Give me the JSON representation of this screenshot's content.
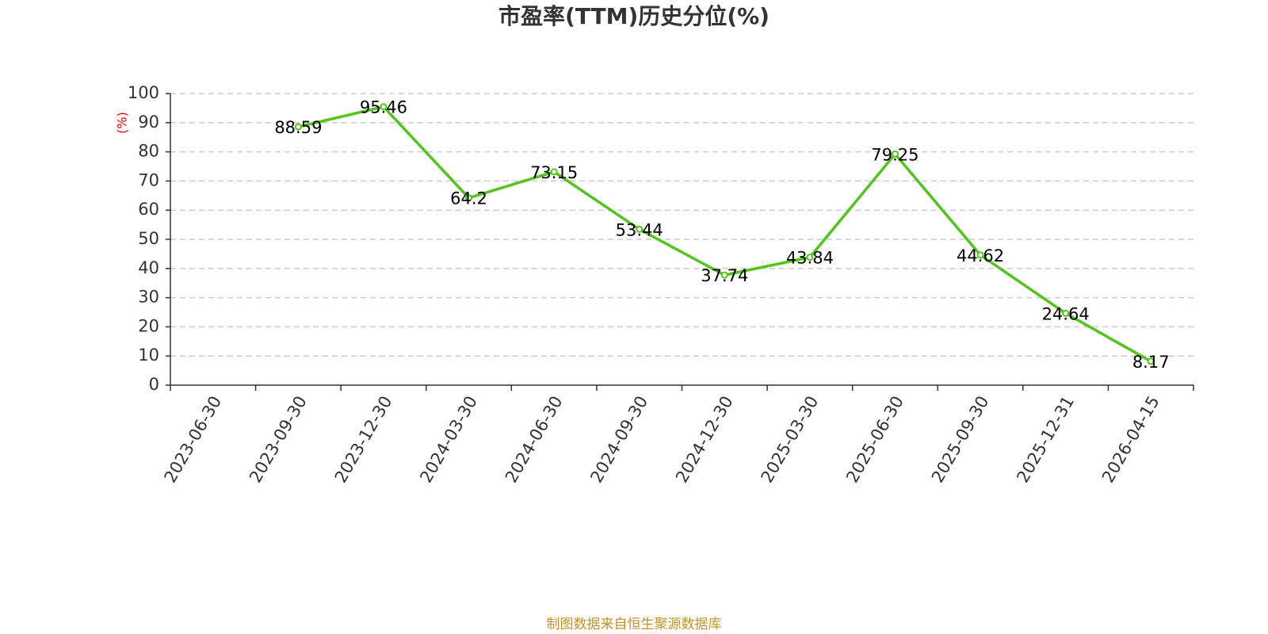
{
  "chart_data": {
    "type": "line",
    "title": "市盈率(TTM)历史分位(%)",
    "y_label": "(%)",
    "source": "制图数据来自恒生聚源数据库",
    "categories": [
      "2023-06-30",
      "2023-09-30",
      "2023-12-30",
      "2024-03-30",
      "2024-06-30",
      "2024-09-30",
      "2024-12-30",
      "2025-03-30",
      "2025-06-30",
      "2025-09-30",
      "2025-12-31",
      "2026-04-15"
    ],
    "values": [
      null,
      88.59,
      95.46,
      64.2,
      73.15,
      53.44,
      37.74,
      43.84,
      79.25,
      44.62,
      24.64,
      8.17
    ],
    "color": "#52c41a",
    "ylim": [
      0,
      100
    ],
    "yticks": [
      0,
      10,
      20,
      30,
      40,
      50,
      60,
      70,
      80,
      90,
      100
    ],
    "grid": true
  }
}
